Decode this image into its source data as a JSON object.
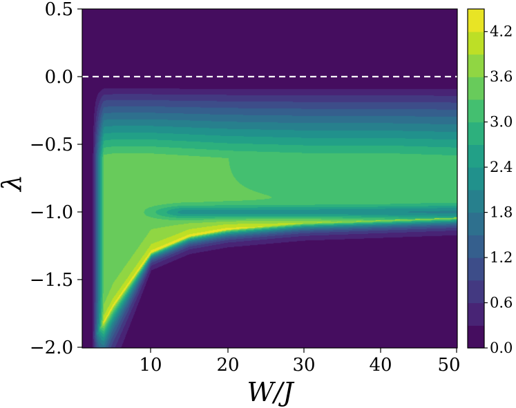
{
  "chart_data": {
    "type": "heatmap",
    "subtype": "filled-contour",
    "xlabel": "W/J",
    "ylabel": "λ",
    "xlim": [
      1,
      50
    ],
    "ylim": [
      -2.0,
      0.5
    ],
    "x_ticks": [
      10,
      20,
      30,
      40,
      50
    ],
    "x_tick_labels": [
      "10",
      "20",
      "30",
      "40",
      "50"
    ],
    "y_ticks": [
      0.5,
      0.0,
      -0.5,
      -1.0,
      -1.5,
      -2.0
    ],
    "y_tick_labels": [
      "0.5",
      "0.0",
      "−0.5",
      "−1.0",
      "−1.5",
      "−2.0"
    ],
    "colormap": "viridis",
    "colorbar": {
      "range": [
        0.0,
        4.5
      ],
      "levels": [
        0.0,
        0.3,
        0.6,
        0.9,
        1.2,
        1.5,
        1.8,
        2.1,
        2.4,
        2.7,
        3.0,
        3.3,
        3.6,
        3.9,
        4.2,
        4.5
      ],
      "ticks": [
        0.0,
        0.6,
        1.2,
        1.8,
        2.4,
        3.0,
        3.6,
        4.2
      ],
      "tick_labels": [
        "0.0",
        "0.6",
        "1.2",
        "1.8",
        "2.4",
        "3.0",
        "3.6",
        "4.2"
      ],
      "colors": [
        "#440154",
        "#482475",
        "#414487",
        "#355f8d",
        "#2a788e",
        "#21918c",
        "#22a884",
        "#44bf70",
        "#7ad151",
        "#bddf26",
        "#fde725"
      ],
      "placement": "right"
    },
    "reference_line": {
      "y": 0.0,
      "style": "dashed",
      "color": "#ffffff"
    },
    "field_description": {
      "x_samples": [
        1,
        3,
        5,
        10,
        15,
        20,
        30,
        40,
        50
      ],
      "band_peak_value": [
        3.0,
        3.4,
        3.5,
        3.5,
        3.4,
        3.3,
        3.2,
        3.2,
        3.1
      ],
      "sharp_edge_lambda": [
        -2.0,
        -1.9,
        -1.7,
        -1.3,
        -1.18,
        -1.13,
        -1.08,
        -1.06,
        -1.04
      ],
      "peak_value_max": 4.4,
      "value_above_zero": 0.0
    },
    "grid": false,
    "legend": "none"
  }
}
